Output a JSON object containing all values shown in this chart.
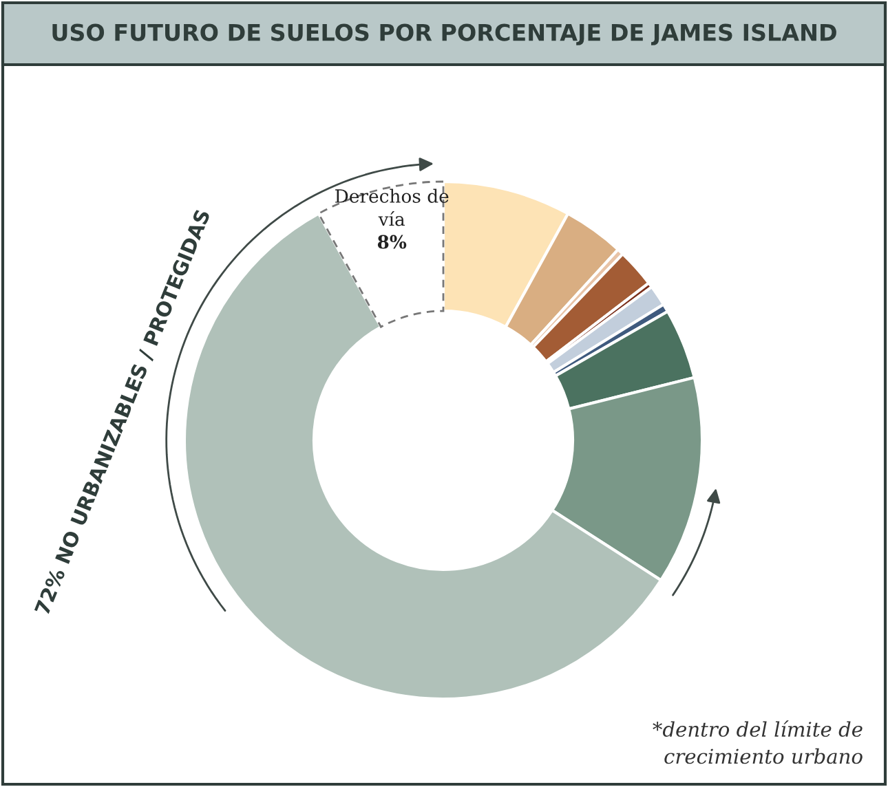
{
  "chart_data": {
    "type": "donut",
    "title": "USO FUTURO DE SUELOS POR PORCENTAJE DE JAMES ISLAND",
    "categories": [
      null,
      null,
      null,
      null,
      null,
      null,
      null,
      null,
      null,
      null,
      "Derechos de vía"
    ],
    "values": [
      8.0,
      3.8,
      0.4,
      2.4,
      0.3,
      1.3,
      0.5,
      4.4,
      13.0,
      57.9,
      8
    ],
    "colors": [
      "#fde3b5",
      "#d9ae82",
      "#e8c3a6",
      "#a35c35",
      "#7a2e1a",
      "#c2cedc",
      "#3f5a7e",
      "#4b7260",
      "#7a9888",
      "#b0c1b9",
      "#ffffff"
    ],
    "value_labels": [
      null,
      null,
      null,
      null,
      null,
      null,
      null,
      null,
      null,
      null,
      "8%"
    ],
    "annotations": [
      "72% NO URBANIZABLES / PROTEGIDAS",
      "*dentro del límite de crecimiento urbano"
    ]
  }
}
